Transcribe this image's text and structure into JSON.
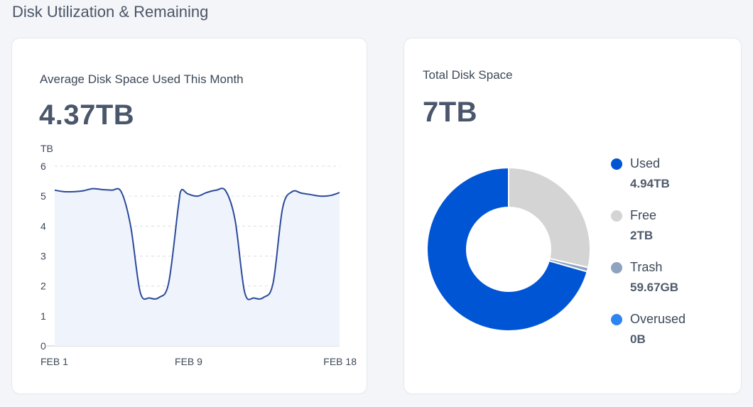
{
  "section_title": "Disk Utilization & Remaining",
  "avg_card": {
    "label": "Average Disk Space Used This Month",
    "value": "4.37TB"
  },
  "total_card": {
    "label": "Total Disk Space",
    "value": "7TB"
  },
  "colors": {
    "line": "#2a4a9a",
    "area_fill": "#eff3fb",
    "grid": "#d9dde4",
    "used": "#0055d4",
    "free": "#d4d4d4",
    "trash": "#8ea3bf",
    "overused": "#2d86f0"
  },
  "chart_data": [
    {
      "type": "area",
      "ylabel": "TB",
      "ylim": [
        0,
        6
      ],
      "yticks": [
        "0",
        "1",
        "2",
        "3",
        "4",
        "5",
        "6"
      ],
      "xticks": [
        "FEB 1",
        "FEB 9",
        "FEB 18"
      ],
      "grid": "horizontal dashed",
      "x": [
        0,
        0.6,
        1.2,
        1.8,
        2.4,
        3.0,
        3.6,
        4.2,
        4.8,
        5.4,
        6.0,
        6.6,
        7.2,
        7.8,
        8.0,
        8.4,
        9.0,
        9.6,
        10.2,
        10.8,
        11.4,
        12.0,
        12.6,
        13.2,
        13.8,
        14.4,
        15.0,
        15.6,
        16.2,
        16.8,
        17.4,
        18.0
      ],
      "values": [
        5.2,
        5.15,
        5.15,
        5.18,
        5.25,
        5.22,
        5.2,
        5.15,
        4.0,
        1.8,
        1.6,
        1.62,
        2.1,
        4.6,
        5.2,
        5.08,
        5.0,
        5.12,
        5.2,
        5.18,
        4.2,
        1.8,
        1.6,
        1.62,
        2.1,
        4.6,
        5.15,
        5.1,
        5.05,
        5.0,
        5.02,
        5.12
      ]
    },
    {
      "type": "pie",
      "style": "donut",
      "total_label": "7TB",
      "categories": [
        "Used",
        "Free",
        "Trash",
        "Overused"
      ],
      "values": [
        4.94,
        2,
        0.05967,
        0
      ],
      "value_labels": [
        "4.94TB",
        "2TB",
        "59.67GB",
        "0B"
      ]
    }
  ]
}
